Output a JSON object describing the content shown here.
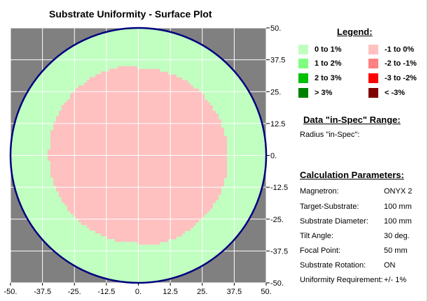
{
  "chart_data": {
    "type": "heatmap",
    "title": "Substrate Uniformity - Surface Plot",
    "x_ticks": [
      "-50.",
      "-37.5",
      "-25.",
      "-12.5",
      "0.",
      "12.5",
      "25.",
      "37.5",
      "50."
    ],
    "y_ticks": [
      "50.",
      "37.5",
      "25.",
      "12.5",
      "0.",
      "-12.5",
      "-25.",
      "-37.5",
      "-50."
    ],
    "xlim": [
      -50,
      50
    ],
    "ylim": [
      -50,
      50
    ],
    "grid": true,
    "substrate_radius": 50,
    "regions": [
      {
        "range": "0 to 1%",
        "shape": "annulus",
        "r_inner": 35,
        "r_outer": 50
      },
      {
        "range": "-1 to 0%",
        "shape": "disk",
        "r_outer": 35
      }
    ]
  },
  "colors": {
    "outside": "#808080",
    "grid": "#ffffff",
    "substrate_edge": "#000080",
    "pos_0_1": "#c0ffc0",
    "pos_1_2": "#80ff80",
    "pos_2_3": "#00c000",
    "pos_gt_3": "#008000",
    "neg_1_0": "#ffc0c0",
    "neg_2_1": "#ff8080",
    "neg_3_2": "#ff0000",
    "neg_lt_3": "#800000"
  },
  "legend": {
    "heading": "Legend:",
    "items": [
      {
        "label": "0 to 1%",
        "color": "#c0ffc0"
      },
      {
        "label": "1 to 2%",
        "color": "#80ff80"
      },
      {
        "label": "2 to 3%",
        "color": "#00c000"
      },
      {
        "label": "> 3%",
        "color": "#008000"
      },
      {
        "label": "-1 to 0%",
        "color": "#ffc0c0"
      },
      {
        "label": "-2 to -1%",
        "color": "#ff8080"
      },
      {
        "label": "-3 to -2%",
        "color": "#ff0000"
      },
      {
        "label": "< -3%",
        "color": "#800000"
      }
    ]
  },
  "in_spec": {
    "heading": "Data \"in-Spec\" Range:",
    "radius_label": "Radius \"in-Spec\":"
  },
  "params": {
    "heading": "Calculation Parameters:",
    "rows": [
      {
        "label": "Magnetron:",
        "value": "ONYX 2"
      },
      {
        "label": "Target-Substrate:",
        "value": "100 mm"
      },
      {
        "label": "Substrate Diameter:",
        "value": "100 mm"
      },
      {
        "label": "Tilt Angle:",
        "value": "30 deg."
      },
      {
        "label": "Focal Point:",
        "value": "50 mm"
      },
      {
        "label": "Substrate Rotation:",
        "value": "ON"
      },
      {
        "label": "Uniformity Requirement:",
        "value": "+/- 1%"
      }
    ]
  }
}
